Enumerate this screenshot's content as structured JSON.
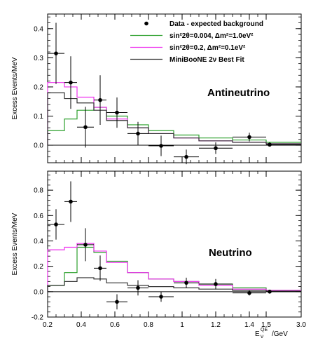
{
  "chart_data": {
    "type": "line",
    "xlabel": "E_ν^QE/GeV",
    "xlabel_parts": {
      "base": "E",
      "sup": "QE",
      "sub": "ν",
      "unit": "/GeV"
    },
    "x_ticks": [
      0.2,
      0.4,
      0.6,
      0.8,
      1.0,
      1.2,
      1.4,
      1.5,
      3.0
    ],
    "x_tick_labels": [
      "0.2",
      "0.4",
      "0.6",
      "0.8",
      "1",
      "1.2",
      "1.4",
      "1.5",
      "3.0"
    ],
    "x_scale": "linear 0.2-1.5, compressed 1.5-3.0 region",
    "legend": {
      "placement": "top-right",
      "entries": [
        {
          "label": "Data - expected background",
          "marker": "dot",
          "color": "#000000"
        },
        {
          "label": "sin²2θ=0.004, Δm²=1.0eV²",
          "color": "#2ca02c"
        },
        {
          "label": "sin²2θ=0.2, Δm²=0.1eV²",
          "color": "#ee33ee"
        },
        {
          "label": "MiniBooNE 2ν Best Fit",
          "color": "#333333"
        }
      ]
    },
    "bin_edges": [
      0.2,
      0.3,
      0.375,
      0.475,
      0.55,
      0.675,
      0.8,
      0.95,
      1.1,
      1.3,
      1.5,
      3.0
    ],
    "panels": [
      {
        "name": "Antineutrino",
        "ylabel": "Excess Events/MeV",
        "ylim": [
          -0.06,
          0.45
        ],
        "y_ticks": [
          0.0,
          0.1,
          0.2,
          0.3,
          0.4
        ],
        "y_tick_labels": [
          "0.0",
          "0.1",
          "0.2",
          "0.3",
          "0.4"
        ],
        "data": {
          "x": [
            0.25,
            0.3375,
            0.425,
            0.5125,
            0.6125,
            0.7375,
            0.875,
            1.025,
            1.2,
            1.4,
            1.65
          ],
          "y": [
            0.315,
            0.215,
            0.062,
            0.155,
            0.112,
            0.04,
            -0.002,
            -0.04,
            -0.01,
            0.028,
            0.002
          ],
          "yerr": [
            0.105,
            0.09,
            0.07,
            0.085,
            0.052,
            0.04,
            0.035,
            0.025,
            0.02,
            0.015,
            0.005
          ]
        },
        "series": [
          {
            "name": "sin²2θ=0.004, Δm²=1.0eV²",
            "values": [
              0.05,
              0.09,
              0.12,
              0.13,
              0.1,
              0.07,
              0.05,
              0.035,
              0.025,
              0.018,
              0.01
            ]
          },
          {
            "name": "sin²2θ=0.2, Δm²=0.1eV²",
            "values": [
              0.215,
              0.2,
              0.165,
              0.13,
              0.09,
              0.06,
              0.04,
              0.025,
              0.015,
              0.01,
              0.005
            ]
          },
          {
            "name": "MiniBooNE 2ν Best Fit",
            "values": [
              0.18,
              0.16,
              0.145,
              0.12,
              0.085,
              0.06,
              0.04,
              0.025,
              0.015,
              0.01,
              0.005
            ]
          }
        ]
      },
      {
        "name": "Neutrino",
        "ylabel": "Excess Events/MeV",
        "ylim": [
          -0.2,
          0.95
        ],
        "y_ticks": [
          -0.2,
          0.0,
          0.2,
          0.4,
          0.6,
          0.8
        ],
        "y_tick_labels": [
          "-0.2",
          "0.0",
          "0.2",
          "0.4",
          "0.6",
          "0.8"
        ],
        "data": {
          "x": [
            0.25,
            0.3375,
            0.425,
            0.5125,
            0.6125,
            0.7375,
            0.875,
            1.025,
            1.2,
            1.4,
            1.65
          ],
          "y": [
            0.53,
            0.71,
            0.37,
            0.185,
            -0.08,
            0.03,
            -0.04,
            0.07,
            0.06,
            -0.01,
            0.0
          ],
          "yerr": [
            0.12,
            0.16,
            0.13,
            0.1,
            0.06,
            0.06,
            0.04,
            0.04,
            0.04,
            0.02,
            0.005
          ]
        },
        "series": [
          {
            "name": "sin²2θ=0.004, Δm²=1.0eV²",
            "values": [
              0.05,
              0.15,
              0.35,
              0.31,
              0.24,
              0.15,
              0.1,
              0.08,
              0.06,
              0.03,
              0.01
            ]
          },
          {
            "name": "sin²2θ=0.2, Δm²=0.1eV²",
            "values": [
              0.33,
              0.35,
              0.38,
              0.32,
              0.23,
              0.15,
              0.1,
              0.08,
              0.05,
              0.02,
              0.01
            ]
          },
          {
            "name": "MiniBooNE 2ν Best Fit",
            "values": [
              0.05,
              0.08,
              0.11,
              0.1,
              0.07,
              0.05,
              0.04,
              0.03,
              0.02,
              0.01,
              0.005
            ]
          }
        ]
      }
    ]
  }
}
